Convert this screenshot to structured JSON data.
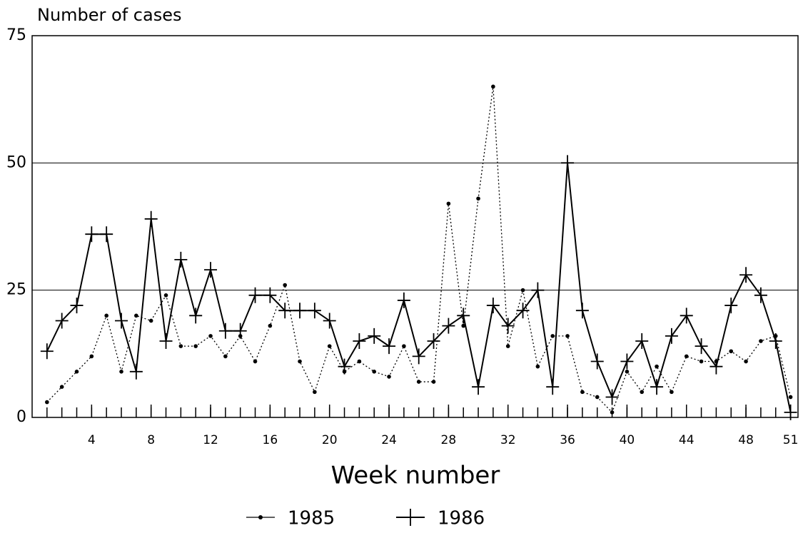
{
  "chart_data": {
    "type": "line",
    "title": "Number of cases",
    "x_label": "Week number",
    "x": [
      1,
      2,
      3,
      4,
      5,
      6,
      7,
      8,
      9,
      10,
      11,
      12,
      13,
      14,
      15,
      16,
      17,
      18,
      19,
      20,
      21,
      22,
      23,
      24,
      25,
      26,
      27,
      28,
      29,
      30,
      31,
      32,
      33,
      34,
      35,
      36,
      37,
      38,
      39,
      40,
      41,
      42,
      43,
      44,
      45,
      46,
      47,
      48,
      49,
      50,
      51
    ],
    "series": [
      {
        "name": "1985",
        "color": "#000000",
        "values": [
          3,
          6,
          9,
          12,
          20,
          9,
          20,
          19,
          24,
          14,
          14,
          16,
          12,
          16,
          11,
          18,
          26,
          11,
          5,
          14,
          9,
          11,
          9,
          8,
          14,
          7,
          7,
          42,
          18,
          43,
          65,
          14,
          25,
          10,
          16,
          16,
          5,
          4,
          1,
          9,
          5,
          10,
          5,
          12,
          11,
          11,
          13,
          11,
          15,
          16,
          4
        ]
      },
      {
        "name": "1986",
        "color": "#000000",
        "values": [
          13,
          19,
          22,
          36,
          36,
          19,
          9,
          39,
          15,
          31,
          20,
          29,
          17,
          17,
          24,
          24,
          21,
          21,
          21,
          19,
          10,
          15,
          16,
          14,
          23,
          12,
          15,
          18,
          20,
          6,
          22,
          18,
          21,
          25,
          6,
          50,
          21,
          11,
          4,
          11,
          15,
          6,
          16,
          20,
          14,
          10,
          22,
          28,
          24,
          15,
          1
        ]
      }
    ],
    "xlim": [
      0,
      51.5
    ],
    "xticks": [
      4,
      8,
      12,
      16,
      20,
      24,
      28,
      32,
      36,
      40,
      44,
      48,
      51
    ],
    "ylim": [
      0,
      75
    ],
    "yticks": [
      0,
      25,
      50,
      75
    ],
    "grid": true,
    "legend": "bottom"
  }
}
